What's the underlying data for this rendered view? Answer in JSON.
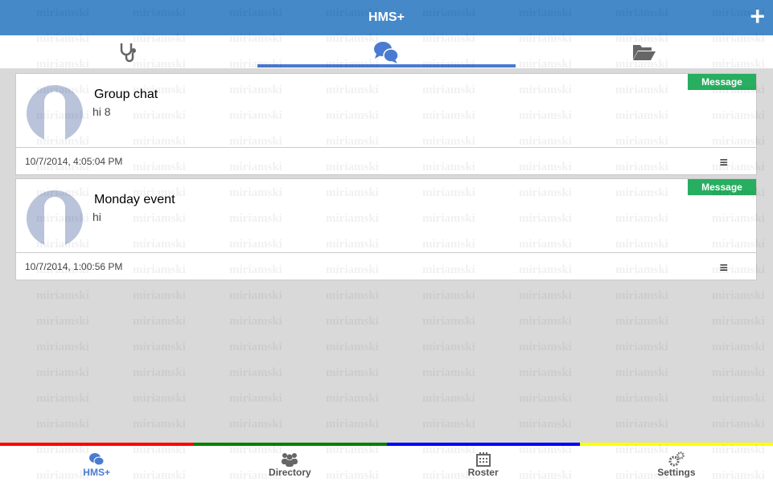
{
  "header": {
    "title": "HMS+",
    "add_icon": "plus-icon"
  },
  "tabs": [
    {
      "icon": "stethoscope-icon",
      "active": false
    },
    {
      "icon": "chat-bubbles-icon",
      "active": true
    },
    {
      "icon": "folder-open-icon",
      "active": false
    }
  ],
  "cards": [
    {
      "title": "Group chat",
      "message": "hi 8",
      "badge": "Message",
      "timestamp": "10/7/2014, 4:05:04 PM"
    },
    {
      "title": "Monday event",
      "message": "hi",
      "badge": "Message",
      "timestamp": "10/7/2014, 1:00:56 PM"
    }
  ],
  "color_bar": [
    "#ff0000",
    "#008000",
    "#0000ff",
    "#ffff00"
  ],
  "bottom_nav": [
    {
      "label": "HMS+",
      "icon": "chat-bubbles-icon",
      "active": true
    },
    {
      "label": "Directory",
      "icon": "people-icon"
    },
    {
      "label": "Roster",
      "icon": "calendar-icon"
    },
    {
      "label": "Settings",
      "icon": "gears-icon"
    }
  ],
  "watermark": "miriamski",
  "colors": {
    "header": "#4589c9",
    "accent": "#4a7bd0",
    "badge": "#27ae60"
  }
}
